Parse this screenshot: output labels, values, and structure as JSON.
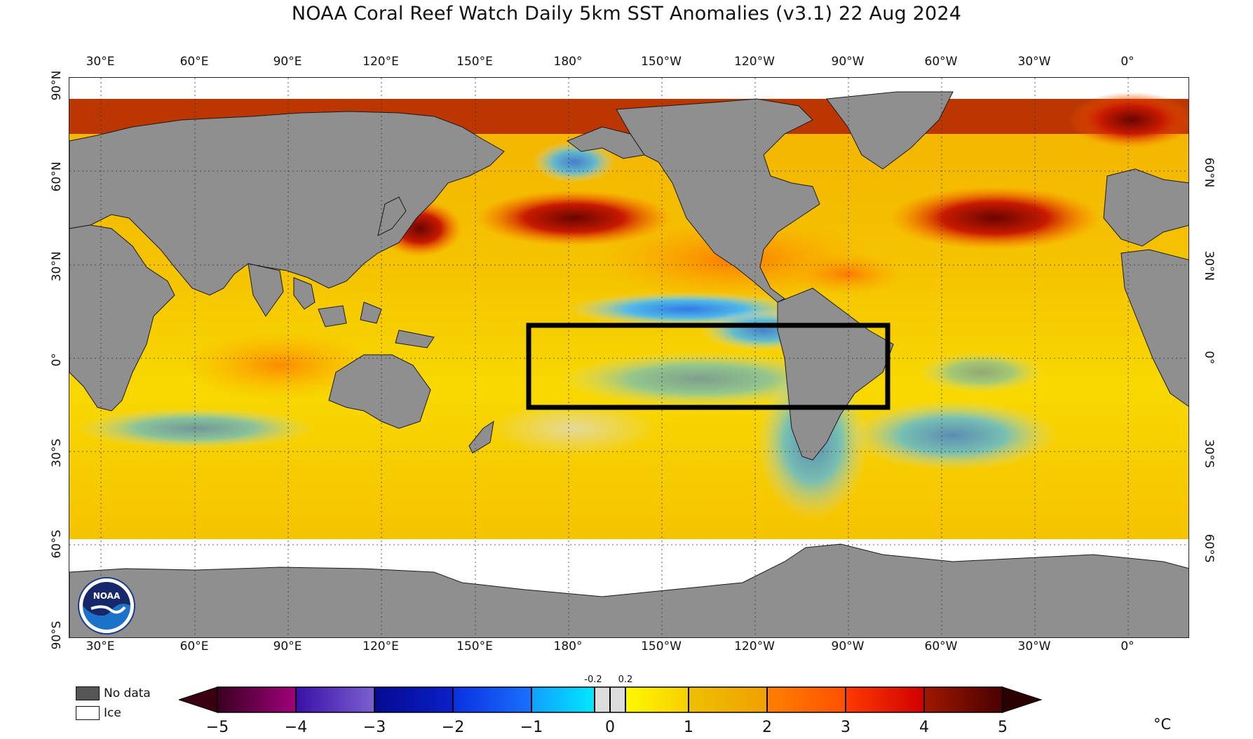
{
  "title": "NOAA Coral Reef Watch Daily 5km SST Anomalies  (v3.1)   22 Aug 2024",
  "map": {
    "lon_labels": [
      "30°E",
      "60°E",
      "90°E",
      "120°E",
      "150°E",
      "180°",
      "150°W",
      "120°W",
      "90°W",
      "60°W",
      "30°W",
      "0°"
    ],
    "lat_labels_left": [
      "90°N",
      "60°N",
      "30°N",
      "0°",
      "30°S",
      "60°S",
      "90°S"
    ],
    "lat_labels_right": [
      "60°N",
      "30°N",
      "0°",
      "30°S",
      "60°S"
    ],
    "land_color": "#8f8f8f",
    "ice_color": "#ffffff",
    "highlight_box_color": "#000000"
  },
  "legend": {
    "no_data_label": "No data",
    "no_data_color": "#555555",
    "ice_label": "Ice",
    "ice_color": "#ffffff"
  },
  "colorbar": {
    "ticks": [
      "−5",
      "−4",
      "−3",
      "−2",
      "−1",
      "0",
      "1",
      "2",
      "3",
      "4",
      "5"
    ],
    "small_ticks": [
      "-0.2",
      "0.2"
    ],
    "unit": "°C",
    "colors": [
      "#4a001c",
      "#8b0080",
      "#5a3cc0",
      "#0a0aa0",
      "#0a40ff",
      "#1ab0ff",
      "#00e0ff",
      "#dcdcdc",
      "#fff200",
      "#f0c000",
      "#ff7a00",
      "#ff2a00",
      "#8a0a00",
      "#3a0000"
    ]
  },
  "logo": {
    "name": "NOAA",
    "ring_text": "NATIONAL OCEANIC AND ATMOSPHERIC ADMINISTRATION · U.S. DEPARTMENT OF COMMERCE"
  }
}
